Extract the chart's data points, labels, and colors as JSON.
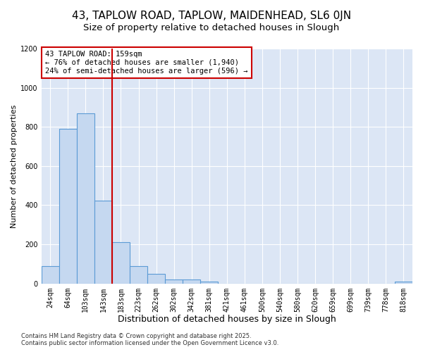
{
  "title1": "43, TAPLOW ROAD, TAPLOW, MAIDENHEAD, SL6 0JN",
  "title2": "Size of property relative to detached houses in Slough",
  "xlabel": "Distribution of detached houses by size in Slough",
  "ylabel": "Number of detached properties",
  "categories": [
    "24sqm",
    "64sqm",
    "103sqm",
    "143sqm",
    "183sqm",
    "223sqm",
    "262sqm",
    "302sqm",
    "342sqm",
    "381sqm",
    "421sqm",
    "461sqm",
    "500sqm",
    "540sqm",
    "580sqm",
    "620sqm",
    "659sqm",
    "699sqm",
    "739sqm",
    "778sqm",
    "818sqm"
  ],
  "values": [
    90,
    790,
    870,
    425,
    210,
    90,
    50,
    20,
    20,
    10,
    0,
    0,
    0,
    0,
    0,
    0,
    0,
    0,
    0,
    0,
    10
  ],
  "bar_color": "#c5d8f0",
  "bar_edge_color": "#5b9bd5",
  "plot_bg_color": "#dce6f5",
  "fig_bg_color": "#ffffff",
  "grid_color": "#ffffff",
  "vline_color": "#cc0000",
  "vline_x": 3.5,
  "annotation_text": "43 TAPLOW ROAD: 159sqm\n← 76% of detached houses are smaller (1,940)\n24% of semi-detached houses are larger (596) →",
  "annotation_box_color": "#ffffff",
  "annotation_box_edge_color": "#cc0000",
  "footer_text": "Contains HM Land Registry data © Crown copyright and database right 2025.\nContains public sector information licensed under the Open Government Licence v3.0.",
  "ylim": [
    0,
    1200
  ],
  "yticks": [
    0,
    200,
    400,
    600,
    800,
    1000,
    1200
  ],
  "title1_fontsize": 11,
  "title2_fontsize": 9.5,
  "xlabel_fontsize": 9,
  "ylabel_fontsize": 8,
  "tick_fontsize": 7,
  "annotation_fontsize": 7.5,
  "footer_fontsize": 6
}
